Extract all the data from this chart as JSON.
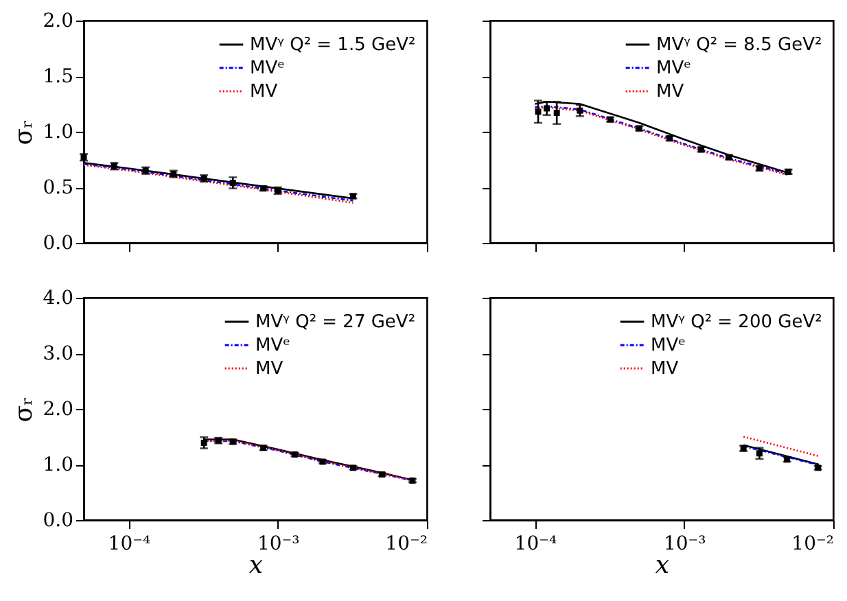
{
  "chart_data": [
    {
      "type": "line",
      "ylabel": "σᵣ",
      "log": "x",
      "xlim": [
        5e-05,
        0.01
      ],
      "ylim": [
        0,
        2
      ],
      "xticks": [
        0.0001,
        0.001,
        0.01
      ],
      "yticks": [
        {
          "value": 0,
          "label": "0.0"
        },
        {
          "value": 0.5,
          "label": "0.5"
        },
        {
          "value": 1,
          "label": "1.0"
        },
        {
          "value": 1.5,
          "label": "1.5"
        },
        {
          "value": 2,
          "label": "2.0"
        }
      ],
      "tick_labels": "y",
      "legend": "top right",
      "series": [
        {
          "name": "MVᵞ Q² = 1.5 GeV²",
          "color": "#000000",
          "line_style": "solid",
          "x": [
            5e-05,
            0.0001,
            0.001,
            0.0032
          ],
          "values": [
            0.72,
            0.67,
            0.49,
            0.4
          ]
        },
        {
          "name": "MVᵉ",
          "color": "#0000ff",
          "line_style": "dashed",
          "x": [
            5e-05,
            0.0001,
            0.001,
            0.0032
          ],
          "values": [
            0.71,
            0.66,
            0.47,
            0.38
          ]
        },
        {
          "name": "MV",
          "color": "#ff0000",
          "line_style": "dotted",
          "x": [
            5e-05,
            0.0001,
            0.001,
            0.0032
          ],
          "values": [
            0.7,
            0.65,
            0.46,
            0.36
          ]
        },
        {
          "type": "scatter",
          "color": "#000000",
          "marker": "square",
          "x": [
            5e-05,
            8e-05,
            0.00013,
            0.0002,
            0.00032,
            0.0005,
            0.0008,
            0.001,
            0.0032
          ],
          "values": [
            0.77,
            0.69,
            0.65,
            0.62,
            0.58,
            0.54,
            0.49,
            0.47,
            0.42
          ],
          "errors": [
            0.03,
            0.03,
            0.03,
            0.03,
            0.03,
            0.05,
            0.02,
            0.03,
            0.02
          ]
        }
      ]
    },
    {
      "type": "line",
      "log": "x",
      "xlim": [
        5e-05,
        0.01
      ],
      "ylim": [
        0,
        2
      ],
      "xticks": [
        0.0001,
        0.001,
        0.01
      ],
      "yticks": [
        0,
        0.5,
        1,
        1.5,
        2
      ],
      "tick_labels": false,
      "legend": "top right",
      "series": [
        {
          "name": "MVᵞ Q² = 8.5 GeV²",
          "color": "#000000",
          "line_style": "solid",
          "x": [
            0.0001,
            0.00012,
            0.0002,
            0.0005,
            0.001,
            0.002,
            0.005
          ],
          "values": [
            1.25,
            1.27,
            1.25,
            1.08,
            0.93,
            0.79,
            0.63
          ]
        },
        {
          "name": "MVᵉ",
          "color": "#0000ff",
          "line_style": "dashed",
          "x": [
            0.0001,
            0.00012,
            0.0002,
            0.0005,
            0.001,
            0.002,
            0.005
          ],
          "values": [
            1.22,
            1.23,
            1.2,
            1.03,
            0.89,
            0.76,
            0.62
          ]
        },
        {
          "name": "MV",
          "color": "#ff0000",
          "line_style": "dotted",
          "x": [
            0.0001,
            0.00012,
            0.0002,
            0.0005,
            0.001,
            0.002,
            0.005
          ],
          "values": [
            1.21,
            1.22,
            1.19,
            1.02,
            0.88,
            0.75,
            0.61
          ]
        },
        {
          "type": "scatter",
          "color": "#000000",
          "marker": "square",
          "x": [
            0.000105,
            0.00012,
            0.00014,
            0.0002,
            0.00032,
            0.0005,
            0.0008,
            0.0013,
            0.002,
            0.0032,
            0.005
          ],
          "values": [
            1.18,
            1.21,
            1.17,
            1.19,
            1.11,
            1.03,
            0.94,
            0.84,
            0.77,
            0.67,
            0.64
          ],
          "errors": [
            0.1,
            0.06,
            0.1,
            0.05,
            0.02,
            0.02,
            0.02,
            0.02,
            0.02,
            0.02,
            0.02
          ]
        }
      ]
    },
    {
      "type": "line",
      "xlabel": "x",
      "ylabel": "σᵣ",
      "log": "x",
      "xlim": [
        5e-05,
        0.01
      ],
      "ylim": [
        0,
        4
      ],
      "xticks": [
        {
          "value": 0.0001,
          "label": "10⁻⁴"
        },
        {
          "value": 0.001,
          "label": "10⁻³"
        },
        {
          "value": 0.01,
          "label": "10⁻²"
        }
      ],
      "yticks": [
        {
          "value": 0,
          "label": "0.0"
        },
        {
          "value": 1,
          "label": "1.0"
        },
        {
          "value": 2,
          "label": "2.0"
        },
        {
          "value": 3,
          "label": "3.0"
        },
        {
          "value": 4,
          "label": "4.0"
        }
      ],
      "legend": "top right",
      "series": [
        {
          "name": "MVᵞ Q² = 27 GeV²",
          "color": "#000000",
          "line_style": "solid",
          "x": [
            0.00032,
            0.0005,
            0.001,
            0.002,
            0.005,
            0.008
          ],
          "values": [
            1.45,
            1.45,
            1.27,
            1.08,
            0.85,
            0.72
          ]
        },
        {
          "name": "MVᵉ",
          "color": "#0000ff",
          "line_style": "dashed",
          "x": [
            0.00032,
            0.0005,
            0.001,
            0.002,
            0.005,
            0.008
          ],
          "values": [
            1.42,
            1.42,
            1.25,
            1.05,
            0.83,
            0.71
          ]
        },
        {
          "name": "MV",
          "color": "#ff0000",
          "line_style": "dotted",
          "x": [
            0.00032,
            0.0005,
            0.001,
            0.002,
            0.005,
            0.008
          ],
          "values": [
            1.43,
            1.43,
            1.26,
            1.06,
            0.84,
            0.72
          ]
        },
        {
          "type": "scatter",
          "color": "#000000",
          "marker": "square",
          "x": [
            0.00032,
            0.0004,
            0.0005,
            0.0008,
            0.0013,
            0.002,
            0.0032,
            0.005,
            0.008
          ],
          "values": [
            1.39,
            1.43,
            1.41,
            1.3,
            1.18,
            1.05,
            0.94,
            0.82,
            0.71
          ],
          "errors": [
            0.1,
            0.05,
            0.04,
            0.04,
            0.03,
            0.03,
            0.03,
            0.03,
            0.03
          ]
        }
      ]
    },
    {
      "type": "line",
      "xlabel": "x",
      "log": "x",
      "xlim": [
        5e-05,
        0.01
      ],
      "ylim": [
        0,
        4
      ],
      "xticks": [
        {
          "value": 0.0001,
          "label": "10⁻⁴"
        },
        {
          "value": 0.001,
          "label": "10⁻³"
        },
        {
          "value": 0.01,
          "label": "10⁻²"
        }
      ],
      "yticks": [
        0,
        1,
        2,
        3,
        4
      ],
      "tick_labels": "x",
      "legend": "top right",
      "series": [
        {
          "name": "MVᵞ Q² = 200 GeV²",
          "color": "#000000",
          "line_style": "solid",
          "x": [
            0.0025,
            0.008
          ],
          "values": [
            1.35,
            1.0
          ]
        },
        {
          "name": "MVᵉ",
          "color": "#0000ff",
          "line_style": "dashed",
          "x": [
            0.0025,
            0.008
          ],
          "values": [
            1.33,
            0.99
          ]
        },
        {
          "name": "MV",
          "color": "#ff0000",
          "line_style": "dotted",
          "x": [
            0.0025,
            0.008
          ],
          "values": [
            1.5,
            1.15
          ]
        },
        {
          "type": "scatter",
          "color": "#000000",
          "marker": "square",
          "x": [
            0.0025,
            0.0032,
            0.0049,
            0.0079
          ],
          "values": [
            1.29,
            1.2,
            1.09,
            0.94
          ],
          "errors": [
            0.05,
            0.1,
            0.04,
            0.03
          ]
        }
      ]
    }
  ]
}
